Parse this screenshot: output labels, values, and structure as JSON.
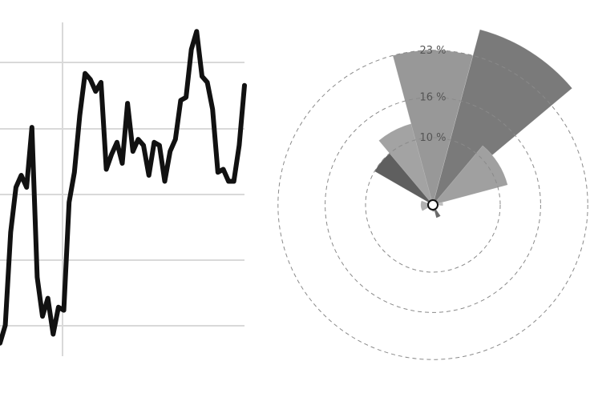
{
  "chart_data": [
    {
      "type": "line",
      "title": "",
      "xlabel": "",
      "ylabel": "",
      "grid": true,
      "series": [
        {
          "values": [
            18,
            24,
            55,
            70,
            74,
            70,
            90,
            40,
            27,
            33,
            21,
            30,
            29,
            65,
            75,
            94,
            108,
            106,
            102,
            105,
            76,
            81,
            85,
            78,
            98,
            82,
            86,
            84,
            74,
            85,
            84,
            72,
            82,
            86,
            99,
            100,
            116,
            122,
            107,
            105,
            96,
            75,
            76,
            72,
            72,
            84,
            104
          ]
        }
      ]
    },
    {
      "type": "pie",
      "subtype": "nightingale-rose",
      "title": "",
      "ring_labels": [
        "10 %",
        "16 %",
        "23 %"
      ],
      "ring_values": [
        10,
        16,
        23
      ],
      "sectors": [
        {
          "start_deg": -60,
          "end_deg": -20,
          "value": 10,
          "color": "#5f5f5f"
        },
        {
          "start_deg": -40,
          "end_deg": 0,
          "value": 12.5,
          "color": "#a3a3a3"
        },
        {
          "start_deg": -15,
          "end_deg": 15,
          "value": 23,
          "color": "#989898"
        },
        {
          "start_deg": 15,
          "end_deg": 50,
          "value": 27,
          "color": "#7a7a7a"
        },
        {
          "start_deg": 40,
          "end_deg": 75,
          "value": 11.5,
          "color": "#a0a0a0"
        },
        {
          "start_deg": 75,
          "end_deg": 95,
          "value": 1.5,
          "color": "#bdbdbd"
        },
        {
          "start_deg": 145,
          "end_deg": 165,
          "value": 2,
          "color": "#6a6a6a"
        },
        {
          "start_deg": 165,
          "end_deg": 185,
          "value": 1,
          "color": "#8a8a8a"
        },
        {
          "start_deg": 240,
          "end_deg": 290,
          "value": 1.8,
          "color": "#b0b0b0"
        }
      ]
    }
  ]
}
